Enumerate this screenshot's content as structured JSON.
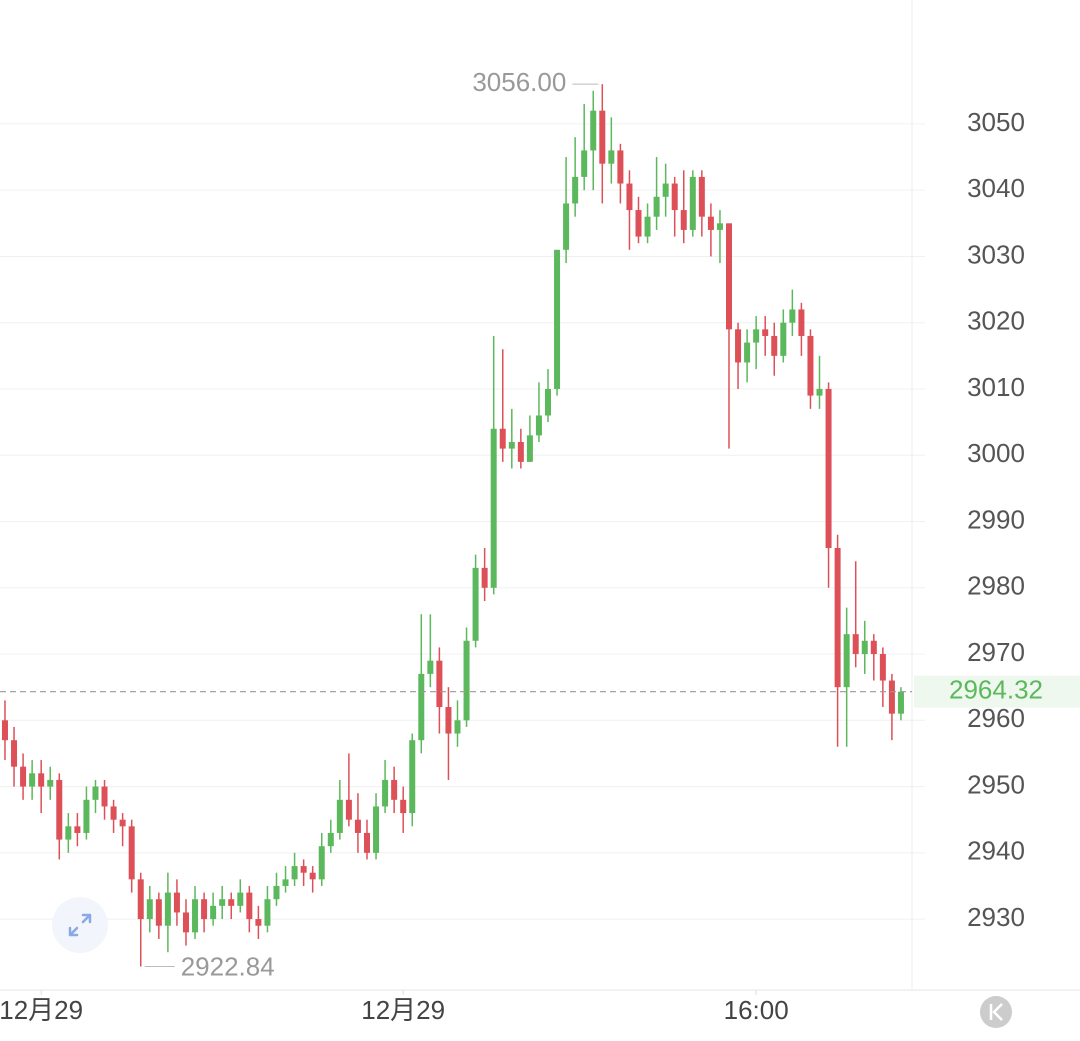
{
  "chart_data": {
    "type": "candlestick",
    "ohlc": [
      [
        2960,
        2963,
        2954,
        2957
      ],
      [
        2957,
        2959,
        2950,
        2953
      ],
      [
        2953,
        2955,
        2948,
        2950
      ],
      [
        2950,
        2954,
        2948,
        2952
      ],
      [
        2952,
        2954,
        2946,
        2950
      ],
      [
        2950,
        2953,
        2948,
        2951
      ],
      [
        2951,
        2952,
        2939,
        2942
      ],
      [
        2942,
        2946,
        2940,
        2944
      ],
      [
        2944,
        2946,
        2941,
        2943
      ],
      [
        2943,
        2950,
        2942,
        2948
      ],
      [
        2948,
        2951,
        2946,
        2950
      ],
      [
        2950,
        2951,
        2945,
        2947
      ],
      [
        2947,
        2948,
        2943,
        2945
      ],
      [
        2945,
        2946,
        2941,
        2944
      ],
      [
        2944,
        2945,
        2934,
        2936
      ],
      [
        2936,
        2937,
        2922.84,
        2930
      ],
      [
        2930,
        2935,
        2928,
        2933
      ],
      [
        2933,
        2934,
        2927,
        2929
      ],
      [
        2929,
        2937,
        2925,
        2934
      ],
      [
        2934,
        2936,
        2929,
        2931
      ],
      [
        2931,
        2933,
        2926,
        2928
      ],
      [
        2928,
        2935,
        2927,
        2933
      ],
      [
        2933,
        2934,
        2928,
        2930
      ],
      [
        2930,
        2934,
        2929,
        2932
      ],
      [
        2932,
        2935,
        2930,
        2933
      ],
      [
        2933,
        2934,
        2930,
        2932
      ],
      [
        2932,
        2936,
        2931,
        2934
      ],
      [
        2934,
        2935,
        2928,
        2930
      ],
      [
        2930,
        2932,
        2927,
        2929
      ],
      [
        2929,
        2935,
        2928,
        2933
      ],
      [
        2933,
        2937,
        2932,
        2935
      ],
      [
        2935,
        2938,
        2934,
        2936
      ],
      [
        2936,
        2940,
        2935,
        2938
      ],
      [
        2938,
        2939,
        2935,
        2937
      ],
      [
        2937,
        2938,
        2934,
        2936
      ],
      [
        2936,
        2943,
        2935,
        2941
      ],
      [
        2941,
        2945,
        2940,
        2943
      ],
      [
        2943,
        2951,
        2942,
        2948
      ],
      [
        2948,
        2955,
        2944,
        2945
      ],
      [
        2945,
        2949,
        2940,
        2943
      ],
      [
        2943,
        2945,
        2939,
        2940
      ],
      [
        2940,
        2949,
        2939,
        2947
      ],
      [
        2947,
        2954,
        2946,
        2951
      ],
      [
        2951,
        2953,
        2946,
        2948
      ],
      [
        2948,
        2950,
        2943,
        2946
      ],
      [
        2946,
        2958,
        2944,
        2957
      ],
      [
        2957,
        2976,
        2955,
        2967
      ],
      [
        2967,
        2976,
        2965,
        2969
      ],
      [
        2969,
        2971,
        2958,
        2962
      ],
      [
        2962,
        2965,
        2951,
        2958
      ],
      [
        2958,
        2963,
        2956,
        2960
      ],
      [
        2960,
        2974,
        2959,
        2972
      ],
      [
        2972,
        2985,
        2971,
        2983
      ],
      [
        2983,
        2986,
        2978,
        2980
      ],
      [
        2980,
        3018,
        2979,
        3004
      ],
      [
        3004,
        3016,
        2999,
        3001
      ],
      [
        3001,
        3007,
        2998,
        3002
      ],
      [
        3002,
        3004,
        2998,
        2999
      ],
      [
        2999,
        3006,
        2999,
        3003
      ],
      [
        3003,
        3011,
        3002,
        3006
      ],
      [
        3006,
        3013,
        3005,
        3010
      ],
      [
        3010,
        3031,
        3009,
        3031
      ],
      [
        3031,
        3045,
        3029,
        3038
      ],
      [
        3038,
        3048,
        3036,
        3042
      ],
      [
        3042,
        3053,
        3040,
        3046
      ],
      [
        3046,
        3055,
        3040,
        3052
      ],
      [
        3052,
        3056,
        3038,
        3044
      ],
      [
        3044,
        3051,
        3041,
        3046
      ],
      [
        3046,
        3047,
        3038,
        3041
      ],
      [
        3041,
        3043,
        3031,
        3037
      ],
      [
        3037,
        3039,
        3032,
        3033
      ],
      [
        3033,
        3038,
        3032,
        3036
      ],
      [
        3036,
        3045,
        3034,
        3039
      ],
      [
        3039,
        3044,
        3036,
        3041
      ],
      [
        3041,
        3042,
        3033,
        3037
      ],
      [
        3037,
        3043,
        3032,
        3034
      ],
      [
        3034,
        3043,
        3033,
        3042
      ],
      [
        3042,
        3043,
        3033,
        3036
      ],
      [
        3036,
        3038,
        3030,
        3034
      ],
      [
        3034,
        3037,
        3029,
        3035
      ],
      [
        3035,
        3035,
        3001,
        3019
      ],
      [
        3019,
        3020,
        3010,
        3014
      ],
      [
        3014,
        3019,
        3011,
        3017
      ],
      [
        3017,
        3021,
        3013,
        3019
      ],
      [
        3019,
        3021,
        3015,
        3018
      ],
      [
        3018,
        3020,
        3012,
        3015
      ],
      [
        3015,
        3022,
        3014,
        3020
      ],
      [
        3020,
        3025,
        3018,
        3022
      ],
      [
        3022,
        3023,
        3015,
        3018
      ],
      [
        3018,
        3019,
        3007,
        3009
      ],
      [
        3009,
        3015,
        3007,
        3010
      ],
      [
        3010,
        3011,
        2980,
        2986
      ],
      [
        2986,
        2988,
        2956,
        2965
      ],
      [
        2965,
        2977,
        2956,
        2973
      ],
      [
        2973,
        2984,
        2968,
        2970
      ],
      [
        2970,
        2975,
        2967,
        2972
      ],
      [
        2972,
        2973,
        2966,
        2970
      ],
      [
        2970,
        2971,
        2962,
        2966
      ],
      [
        2966,
        2967,
        2957,
        2961
      ],
      [
        2961,
        2965,
        2960,
        2964.32
      ]
    ],
    "up_color": "#5cb85c",
    "down_color": "#dd5058",
    "xlim": [
      -0.55,
      100.22
    ],
    "xticks": [
      {
        "value": 4,
        "label": "12月29"
      },
      {
        "value": 44,
        "label": "12月29"
      },
      {
        "value": 83,
        "label": "16:00"
      }
    ],
    "ylim": [
      2919.3,
      3068.7
    ],
    "yticks": [
      2930,
      2940,
      2950,
      2960,
      2970,
      2980,
      2990,
      3000,
      3010,
      3020,
      3030,
      3040,
      3050
    ],
    "grid": true,
    "max_label": {
      "value": 3056,
      "label": "3056.00"
    },
    "min_label": 2922.84,
    "last_price": 2964.32
  }
}
